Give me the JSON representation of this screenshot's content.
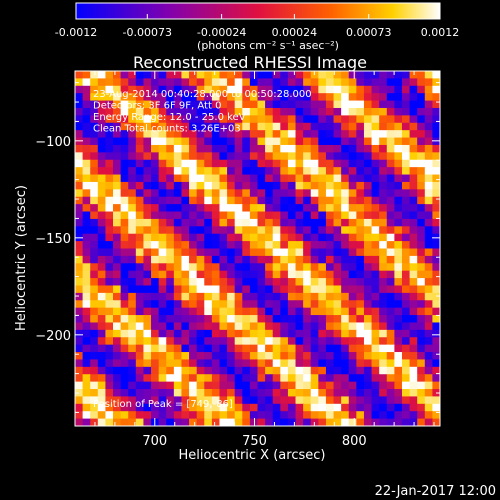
{
  "colorbar": {
    "ticks": [
      "-0.0012",
      "-0.00073",
      "-0.00024",
      "0.00024",
      "0.00073",
      "0.0012"
    ],
    "tick_values": [
      -0.0012,
      -0.00073,
      -0.00024,
      0.00024,
      0.00073,
      0.0012
    ],
    "unit_label": "(photons cm⁻² s⁻¹ asec⁻²)",
    "range": [
      -0.0012,
      0.0012
    ],
    "colormap": "blue-purple-red-orange-yellow-white",
    "colors": [
      "#0000ff",
      "#7f00b0",
      "#e01040",
      "#ff6000",
      "#ffd000",
      "#ffffff"
    ]
  },
  "chart_data": {
    "type": "heatmap",
    "title": "Reconstructed RHESSI Image",
    "xlabel": "Heliocentric X (arcsec)",
    "ylabel": "Heliocentric Y (arcsec)",
    "xlim": [
      660,
      843
    ],
    "ylim": [
      -247,
      -64
    ],
    "xticks": [
      700,
      750,
      800
    ],
    "yticks": [
      -100,
      -150,
      -200
    ],
    "xtick_labels": [
      "700",
      "750",
      "800"
    ],
    "ytick_labels": [
      "−100",
      "−150",
      "−200"
    ],
    "grid_cells": [
      48,
      48
    ],
    "pattern": "diagonal stripes from lower-left to upper-right",
    "annotations": [
      "23-Aug-2014 00:40:28.000 to 00:50:28.000",
      "Detectors: 3F 6F 9F, Att 0",
      "Energy Range: 12.0 - 25.0 keV",
      "Clean     Total counts: 3.26E+03"
    ],
    "peak_label": "Position of Peak = [749,-86]",
    "peak": [
      749,
      -86
    ]
  },
  "footer": {
    "timestamp": "22-Jan-2017 12:00"
  }
}
